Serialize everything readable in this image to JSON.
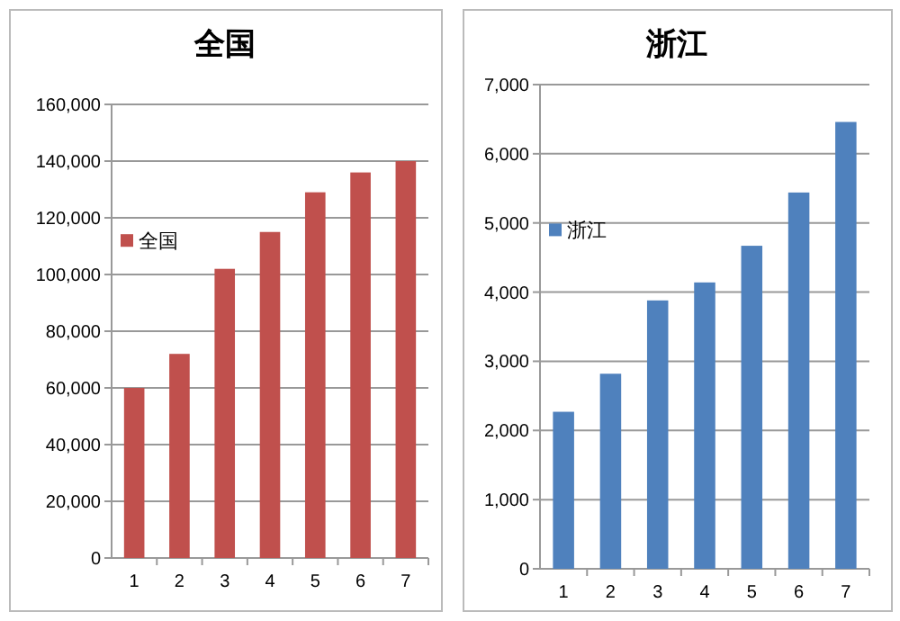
{
  "chart_data": [
    {
      "type": "bar",
      "title": "全国",
      "categories": [
        "1",
        "2",
        "3",
        "4",
        "5",
        "6",
        "7"
      ],
      "series": [
        {
          "name": "全国",
          "color": "#c0504d",
          "values": [
            60000,
            72000,
            102000,
            115000,
            129000,
            136000,
            140000
          ]
        }
      ],
      "ylim": [
        0,
        160000
      ],
      "yticks": [
        {
          "value": 0,
          "label": "0"
        },
        {
          "value": 20000,
          "label": "20,000"
        },
        {
          "value": 40000,
          "label": "40,000"
        },
        {
          "value": 60000,
          "label": "60,000"
        },
        {
          "value": 80000,
          "label": "80,000"
        },
        {
          "value": 100000,
          "label": "100,000"
        },
        {
          "value": 120000,
          "label": "120,000"
        },
        {
          "value": 140000,
          "label": "140,000"
        },
        {
          "value": 160000,
          "label": "160,000"
        }
      ],
      "grid": "y",
      "legend": "left"
    },
    {
      "type": "bar",
      "title": "浙江",
      "categories": [
        "1",
        "2",
        "3",
        "4",
        "5",
        "6",
        "7"
      ],
      "series": [
        {
          "name": "浙江",
          "color": "#4f81bd",
          "values": [
            2270,
            2820,
            3880,
            4140,
            4670,
            5440,
            6460
          ]
        }
      ],
      "ylim": [
        0,
        7000
      ],
      "yticks": [
        {
          "value": 0,
          "label": "0"
        },
        {
          "value": 1000,
          "label": "1,000"
        },
        {
          "value": 2000,
          "label": "2,000"
        },
        {
          "value": 3000,
          "label": "3,000"
        },
        {
          "value": 4000,
          "label": "4,000"
        },
        {
          "value": 5000,
          "label": "5,000"
        },
        {
          "value": 6000,
          "label": "6,000"
        },
        {
          "value": 7000,
          "label": "7,000"
        }
      ],
      "grid": "y",
      "legend": "left"
    }
  ]
}
